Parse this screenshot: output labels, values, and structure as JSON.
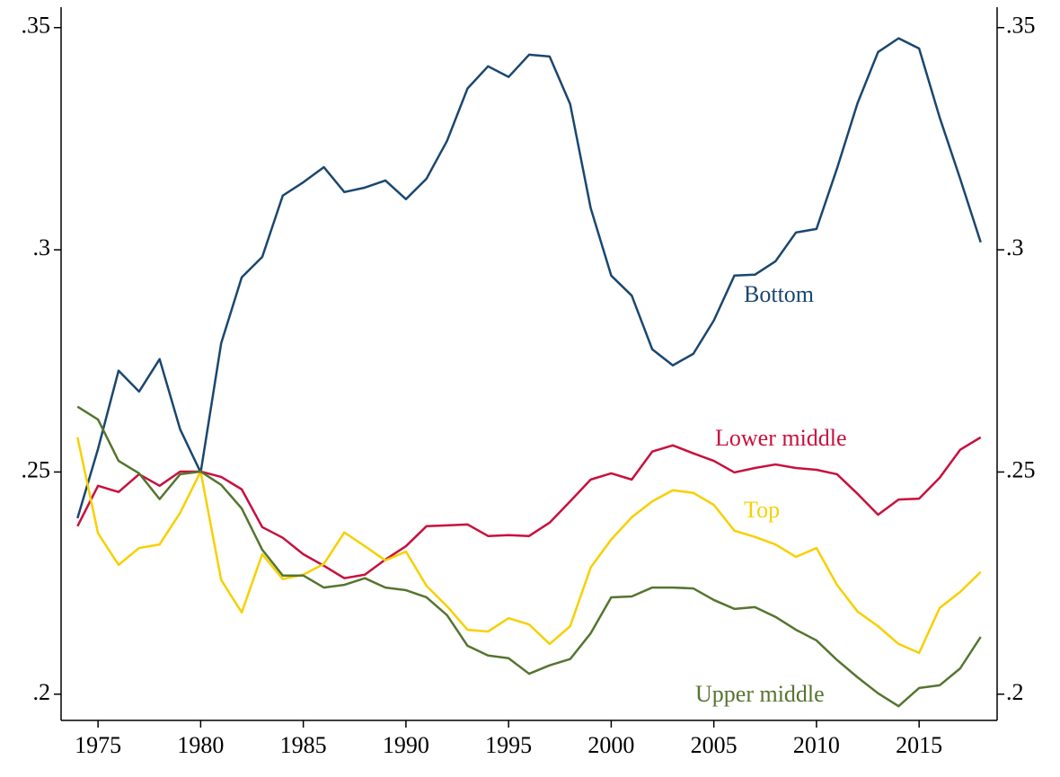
{
  "chart_data": {
    "type": "line",
    "x": [
      1974,
      1975,
      1976,
      1977,
      1978,
      1979,
      1980,
      1981,
      1982,
      1983,
      1984,
      1985,
      1986,
      1987,
      1988,
      1989,
      1990,
      1991,
      1992,
      1993,
      1994,
      1995,
      1996,
      1997,
      1998,
      1999,
      2000,
      2001,
      2002,
      2003,
      2004,
      2005,
      2006,
      2007,
      2008,
      2009,
      2010,
      2011,
      2012,
      2013,
      2014,
      2015,
      2016,
      2017,
      2018
    ],
    "series": [
      {
        "name": "Bottom",
        "color": "#1a476f",
        "values": [
          0.2396,
          0.2552,
          0.2728,
          0.2681,
          0.2754,
          0.2596,
          0.2499,
          0.279,
          0.2938,
          0.2984,
          0.3122,
          0.3152,
          0.3186,
          0.313,
          0.314,
          0.3156,
          0.3114,
          0.316,
          0.3245,
          0.3363,
          0.3413,
          0.3389,
          0.3439,
          0.3435,
          0.3328,
          0.3094,
          0.2942,
          0.2897,
          0.2776,
          0.274,
          0.2766,
          0.2841,
          0.2942,
          0.2944,
          0.2974,
          0.3039,
          0.3047,
          0.3183,
          0.333,
          0.3445,
          0.3476,
          0.3453,
          0.3298,
          0.316,
          0.3017
        ]
      },
      {
        "name": "Lower middle",
        "color": "#c8103e",
        "values": [
          0.2378,
          0.2469,
          0.2455,
          0.2495,
          0.2469,
          0.2501,
          0.2501,
          0.2489,
          0.2461,
          0.2376,
          0.2352,
          0.2315,
          0.2289,
          0.2261,
          0.2269,
          0.2303,
          0.2333,
          0.2378,
          0.238,
          0.2382,
          0.2356,
          0.2358,
          0.2356,
          0.2386,
          0.2434,
          0.2483,
          0.2497,
          0.2483,
          0.2546,
          0.256,
          0.2542,
          0.2525,
          0.2499,
          0.2509,
          0.2517,
          0.2509,
          0.2505,
          0.2495,
          0.2451,
          0.2404,
          0.2438,
          0.244,
          0.2487,
          0.255,
          0.2578
        ]
      },
      {
        "name": "Top",
        "color": "#f7d000",
        "values": [
          0.2578,
          0.2362,
          0.2291,
          0.2329,
          0.2337,
          0.2408,
          0.2501,
          0.2257,
          0.2184,
          0.2315,
          0.2259,
          0.2269,
          0.2293,
          0.2364,
          0.2333,
          0.2301,
          0.2321,
          0.2244,
          0.2198,
          0.2145,
          0.2141,
          0.2171,
          0.2157,
          0.2113,
          0.2153,
          0.2285,
          0.2348,
          0.2398,
          0.2434,
          0.2459,
          0.2453,
          0.2426,
          0.2368,
          0.2354,
          0.2337,
          0.2309,
          0.2329,
          0.2246,
          0.2186,
          0.2153,
          0.2113,
          0.2093,
          0.2194,
          0.223,
          0.2275
        ]
      },
      {
        "name": "Upper middle",
        "color": "#55752f",
        "values": [
          0.2647,
          0.2618,
          0.2525,
          0.2497,
          0.2439,
          0.2495,
          0.2501,
          0.2471,
          0.2418,
          0.2325,
          0.2267,
          0.2267,
          0.224,
          0.2246,
          0.2261,
          0.224,
          0.2234,
          0.2218,
          0.2178,
          0.2109,
          0.2087,
          0.2081,
          0.2046,
          0.2065,
          0.2079,
          0.2137,
          0.2218,
          0.222,
          0.224,
          0.224,
          0.2238,
          0.2212,
          0.2192,
          0.2196,
          0.2174,
          0.2145,
          0.2121,
          0.2077,
          0.2038,
          0.2002,
          0.1973,
          0.2014,
          0.202,
          0.2058,
          0.2129
        ]
      }
    ],
    "xlim": [
      1973.2,
      2018.8
    ],
    "xticks": [
      1975,
      1980,
      1985,
      1990,
      1995,
      2000,
      2005,
      2010,
      2015
    ],
    "ylim": [
      0.1941,
      0.3546
    ],
    "yticks": [
      {
        "value": 0.2,
        "label": ".2"
      },
      {
        "value": 0.25,
        "label": ".25"
      },
      {
        "value": 0.3,
        "label": ".3"
      },
      {
        "value": 0.35,
        "label": ".35"
      }
    ],
    "y2lim": [
      0.1941,
      0.3546
    ],
    "y2ticks": [
      {
        "value": 0.2,
        "label": ".2"
      },
      {
        "value": 0.25,
        "label": ".25"
      },
      {
        "value": 0.3,
        "label": ".3"
      },
      {
        "value": 0.35,
        "label": ".35"
      }
    ]
  }
}
